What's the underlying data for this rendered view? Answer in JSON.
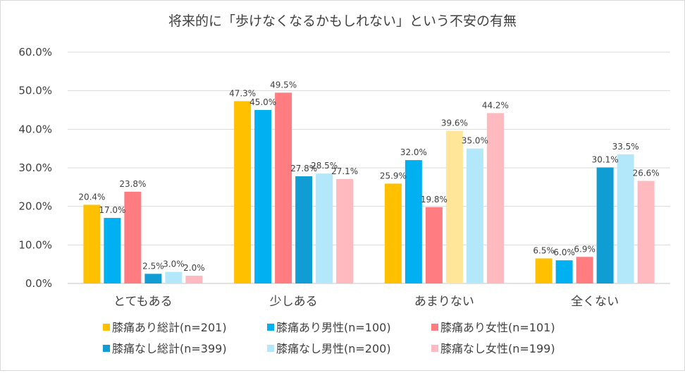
{
  "chart_data": {
    "type": "bar",
    "title": "将来的に「歩けなくなるかもしれない」という不安の有無",
    "xlabel": "",
    "ylabel": "",
    "ylim": [
      0,
      60
    ],
    "ytick_step": 10,
    "ytick_labels": [
      "0.0%",
      "10.0%",
      "20.0%",
      "30.0%",
      "40.0%",
      "50.0%",
      "60.0%"
    ],
    "grid": true,
    "legend_position": "bottom",
    "categories": [
      "とてもある",
      "少しある",
      "あまりない",
      "全くない"
    ],
    "series": [
      {
        "name": "膝痛あり総計(n=201)",
        "color": "#FFC000",
        "values": [
          20.4,
          47.3,
          25.9,
          6.5
        ],
        "labels": [
          "20.4%",
          "47.3%",
          "25.9%",
          "6.5%"
        ]
      },
      {
        "name": "膝痛あり男性(n=100)",
        "color": "#00B0F0",
        "values": [
          17.0,
          45.0,
          32.0,
          6.0
        ],
        "labels": [
          "17.0%",
          "45.0%",
          "32.0%",
          "6.0%"
        ]
      },
      {
        "name": "膝痛あり女性(n=101)",
        "color": "#FF7C80",
        "values": [
          23.8,
          49.5,
          19.8,
          6.9
        ],
        "labels": [
          "23.8%",
          "49.5%",
          "19.8%",
          "6.9%"
        ]
      },
      {
        "name": "膝痛なし総計(n=399)",
        "color": "#109DD4",
        "values": [
          2.5,
          27.8,
          39.6,
          30.1
        ],
        "labels": [
          "2.5%",
          "27.8%",
          "39.6%",
          "30.1%"
        ],
        "point_colors": [
          null,
          null,
          "#FFE699",
          null
        ]
      },
      {
        "name": "膝痛なし男性(n=200)",
        "color": "#B3E8FB",
        "values": [
          3.0,
          28.5,
          35.0,
          33.5
        ],
        "labels": [
          "3.0%",
          "28.5%",
          "35.0%",
          "33.5%"
        ]
      },
      {
        "name": "膝痛なし女性(n=199)",
        "color": "#FFBAC0",
        "values": [
          2.0,
          27.1,
          44.2,
          26.6
        ],
        "labels": [
          "2.0%",
          "27.1%",
          "44.2%",
          "26.6%"
        ]
      }
    ]
  }
}
